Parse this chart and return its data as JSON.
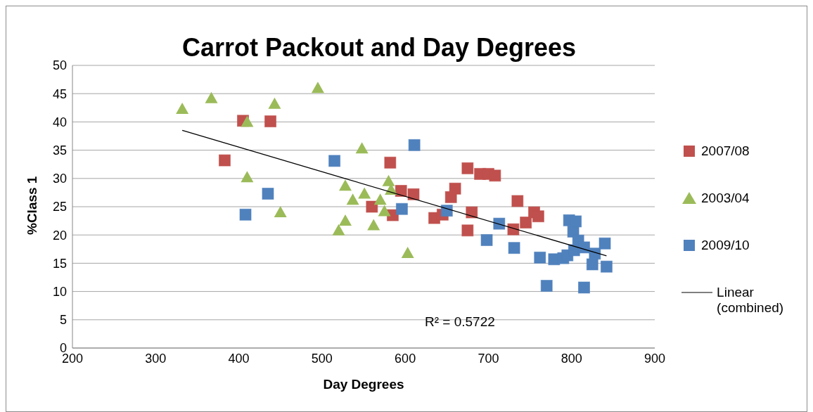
{
  "chart_data": {
    "type": "scatter",
    "title": "Carrot Packout and Day Degrees",
    "xlabel": "Day Degrees",
    "ylabel": "%Class 1",
    "xlim": [
      200,
      900
    ],
    "xticks": [
      200,
      300,
      400,
      500,
      600,
      700,
      800,
      900
    ],
    "ylim": [
      0,
      50
    ],
    "yticks": [
      0,
      5,
      10,
      15,
      20,
      25,
      30,
      35,
      40,
      45,
      50
    ],
    "grid": "y",
    "legend": "right",
    "annotations": [
      "R² = 0.5722"
    ],
    "series": [
      {
        "name": "2007/08",
        "color": "#c0504d",
        "marker": "square",
        "x": [
          405,
          438,
          383,
          582,
          560,
          585,
          595,
          610,
          635,
          645,
          655,
          660,
          675,
          690,
          700,
          708,
          680,
          675,
          735,
          730,
          745,
          755,
          760
        ],
        "values": [
          40.2,
          40.1,
          33.2,
          32.8,
          25,
          23.5,
          27.8,
          27.2,
          23,
          23.6,
          26.7,
          28.2,
          31.8,
          30.8,
          30.8,
          30.5,
          24,
          20.8,
          26,
          21,
          22.2,
          24,
          23.3
        ]
      },
      {
        "name": "2003/04",
        "color": "#9bbb59",
        "marker": "triangle",
        "x": [
          332,
          367,
          410,
          443,
          495,
          410,
          450,
          520,
          528,
          528,
          537,
          548,
          551,
          562,
          570,
          575,
          580,
          583,
          603
        ],
        "values": [
          42.3,
          44.2,
          40,
          43.2,
          46,
          30.2,
          24,
          20.8,
          22.5,
          28.7,
          26.2,
          35.3,
          27.3,
          21.7,
          26.2,
          24.2,
          29.5,
          28,
          16.8
        ]
      },
      {
        "name": "2009/10",
        "color": "#4f81bd",
        "marker": "square",
        "x": [
          408,
          435,
          515,
          611,
          596,
          650,
          698,
          713,
          731,
          762,
          770,
          779,
          790,
          797,
          795,
          803,
          802,
          805,
          808,
          815,
          815,
          825,
          828,
          840,
          842
        ],
        "values": [
          23.6,
          27.3,
          33.1,
          35.9,
          24.6,
          24.3,
          19.1,
          22,
          17.7,
          16,
          11,
          15.7,
          15.9,
          22.6,
          16.4,
          17.3,
          20.6,
          22.4,
          19,
          17.8,
          10.7,
          14.8,
          16.7,
          18.5,
          14.4
        ]
      },
      {
        "name": "Linear (combined)",
        "type": "line",
        "color": "#000000",
        "marker": "none",
        "x": [
          332,
          842
        ],
        "values": [
          38.5,
          16.3
        ]
      }
    ]
  }
}
